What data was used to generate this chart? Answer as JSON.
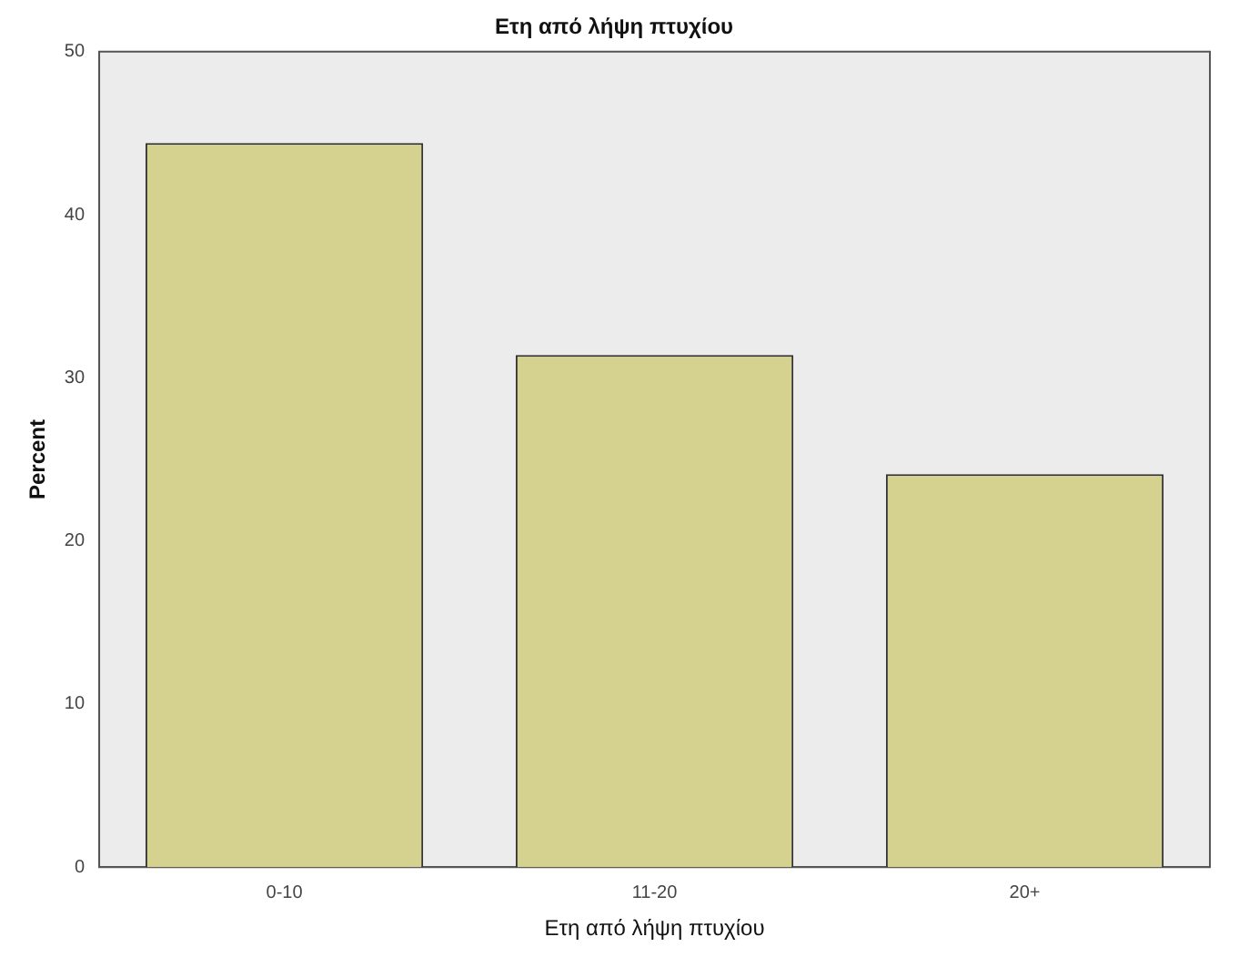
{
  "chart_data": {
    "type": "bar",
    "title": "Ετη από λήψη πτυχίου",
    "xlabel": "Ετη από λήψη πτυχίου",
    "ylabel": "Percent",
    "categories": [
      "0-10",
      "11-20",
      "20+"
    ],
    "values": [
      44.4,
      31.4,
      24.1
    ],
    "color": "#d4d28e",
    "ylim": [
      0,
      50
    ],
    "yticks": [
      0,
      10,
      20,
      30,
      40,
      50
    ],
    "grid": false,
    "legend": false
  }
}
